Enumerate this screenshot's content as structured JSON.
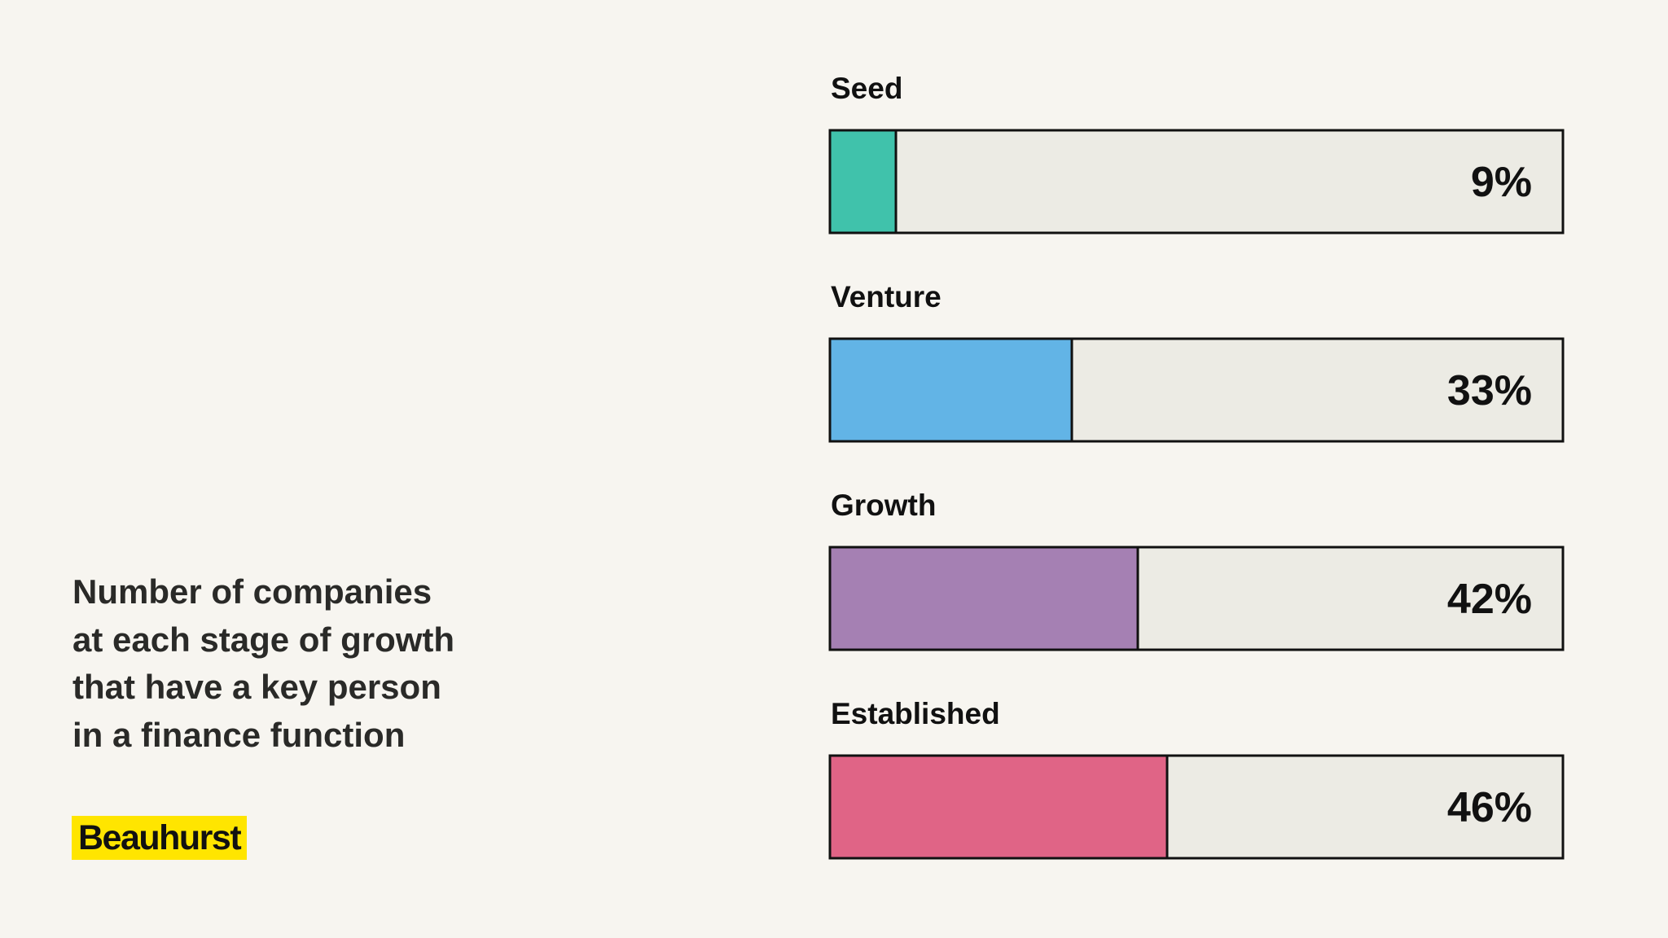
{
  "caption": {
    "lines": [
      "Number of companies",
      "at each stage of growth",
      "that have a key person",
      "in a finance function"
    ]
  },
  "logo": {
    "text": "Beauhurst",
    "color": "#ffe500"
  },
  "colors": {
    "background": "#f7f5f0",
    "track": "#ecebe4",
    "border": "#111111"
  },
  "chart_data": {
    "type": "bar",
    "orientation": "horizontal",
    "categories": [
      "Seed",
      "Venture",
      "Growth",
      "Established"
    ],
    "values": [
      9,
      33,
      42,
      46
    ],
    "value_labels": [
      "9%",
      "33%",
      "42%",
      "46%"
    ],
    "colors": [
      "#40c2ab",
      "#62b4e6",
      "#a580b3",
      "#e06486"
    ],
    "xlim": [
      0,
      100
    ],
    "unit": "%",
    "grid": false,
    "legend": "none"
  }
}
